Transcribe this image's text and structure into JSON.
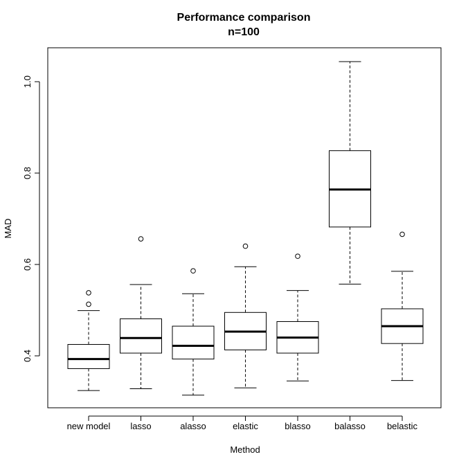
{
  "chart_data": {
    "type": "boxplot",
    "title": "Performance comparison",
    "subtitle": "n=100",
    "xlabel": "Method",
    "ylabel": "MAD",
    "ylim": [
      0.285,
      1.07
    ],
    "yticks": [
      0.4,
      0.6,
      0.8,
      1.0
    ],
    "ytick_labels": [
      "0.4",
      "0.6",
      "0.8",
      "1.0"
    ],
    "grid": false,
    "categories": [
      "new model",
      "lasso",
      "alasso",
      "elastic",
      "blasso",
      "balasso",
      "belastic"
    ],
    "boxes": [
      {
        "category": "new model",
        "whisker_low": 0.324,
        "q1": 0.372,
        "median": 0.393,
        "q3": 0.425,
        "whisker_high": 0.499,
        "outliers": [
          0.513,
          0.538
        ]
      },
      {
        "category": "lasso",
        "whisker_low": 0.328,
        "q1": 0.406,
        "median": 0.439,
        "q3": 0.481,
        "whisker_high": 0.556,
        "outliers": [
          0.656
        ]
      },
      {
        "category": "alasso",
        "whisker_low": 0.314,
        "q1": 0.393,
        "median": 0.422,
        "q3": 0.465,
        "whisker_high": 0.536,
        "outliers": [
          0.586
        ]
      },
      {
        "category": "elastic",
        "whisker_low": 0.33,
        "q1": 0.413,
        "median": 0.453,
        "q3": 0.495,
        "whisker_high": 0.595,
        "outliers": [
          0.64
        ]
      },
      {
        "category": "blasso",
        "whisker_low": 0.345,
        "q1": 0.406,
        "median": 0.44,
        "q3": 0.475,
        "whisker_high": 0.543,
        "outliers": [
          0.618
        ]
      },
      {
        "category": "balasso",
        "whisker_low": 0.557,
        "q1": 0.682,
        "median": 0.764,
        "q3": 0.849,
        "whisker_high": 1.044,
        "outliers": []
      },
      {
        "category": "belastic",
        "whisker_low": 0.346,
        "q1": 0.427,
        "median": 0.465,
        "q3": 0.503,
        "whisker_high": 0.585,
        "outliers": [
          0.666
        ]
      }
    ]
  }
}
